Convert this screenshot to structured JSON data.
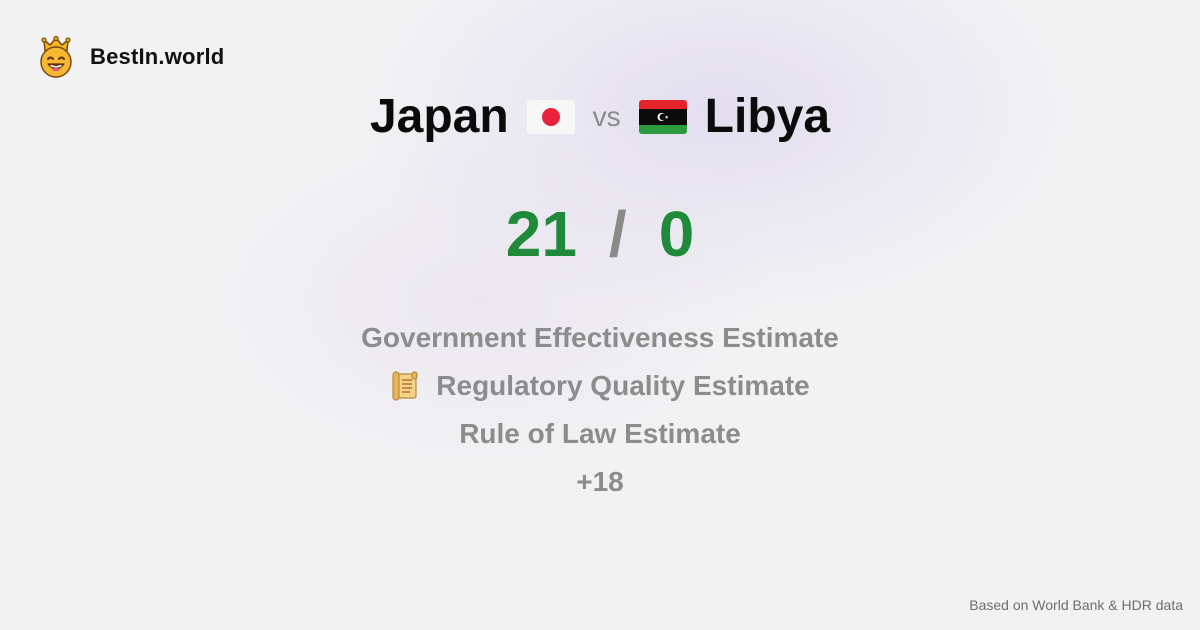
{
  "brand": {
    "name": "BestIn.world",
    "logo_icon": "crown-smiley-icon"
  },
  "comparison": {
    "left": {
      "name": "Japan",
      "flag_icon": "japan-flag-icon"
    },
    "vs_label": "vs",
    "right": {
      "name": "Libya",
      "flag_icon": "libya-flag-icon"
    }
  },
  "score": {
    "left": "21",
    "separator": "/",
    "right": "0",
    "color": "#1f8a3a"
  },
  "metrics": {
    "items": [
      {
        "label": "Government Effectiveness Estimate",
        "icon": ""
      },
      {
        "label": "Regulatory Quality Estimate",
        "icon": "scroll-icon"
      },
      {
        "label": "Rule of Law Estimate",
        "icon": ""
      }
    ],
    "more": "+18"
  },
  "footer": {
    "source": "Based on World Bank & HDR data"
  }
}
